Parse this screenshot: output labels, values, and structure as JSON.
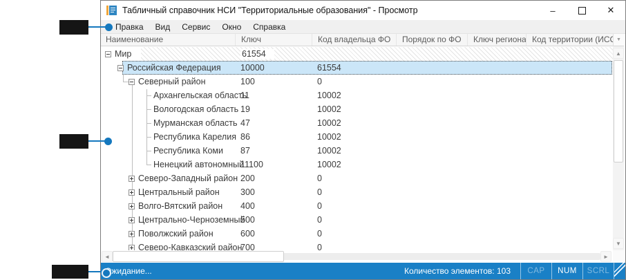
{
  "window": {
    "title": "Табличный справочник НСИ \"Территориальные образования\" - Просмотр",
    "controls": {
      "minimize": "–",
      "close": "✕"
    }
  },
  "menu": {
    "items": [
      "Правка",
      "Вид",
      "Сервис",
      "Окно",
      "Справка"
    ]
  },
  "grid": {
    "columns": [
      "Наименование",
      "Ключ",
      "Код владельца ФО",
      "Порядок по ФО",
      "Ключ региона",
      "Код территории (ИСС"
    ],
    "rows": [
      {
        "name": "Мир",
        "key": "61554",
        "owner": "",
        "level": 0,
        "expander": "minus",
        "hatched": true
      },
      {
        "name": "Российская Федерация",
        "key": "10000",
        "owner": "61554",
        "level": 1,
        "expander": "minus",
        "selected": true
      },
      {
        "name": "Северный район",
        "key": "100",
        "owner": "0",
        "level": 2,
        "expander": "minus"
      },
      {
        "name": "Архангельская область",
        "key": "11",
        "owner": "10002",
        "level": 3,
        "expander": "leaf"
      },
      {
        "name": "Вологодская область",
        "key": "19",
        "owner": "10002",
        "level": 3,
        "expander": "leaf"
      },
      {
        "name": "Мурманская область",
        "key": "47",
        "owner": "10002",
        "level": 3,
        "expander": "leaf"
      },
      {
        "name": "Республика Карелия",
        "key": "86",
        "owner": "10002",
        "level": 3,
        "expander": "leaf"
      },
      {
        "name": "Республика Коми",
        "key": "87",
        "owner": "10002",
        "level": 3,
        "expander": "leaf"
      },
      {
        "name": "Ненецкий автономный",
        "key": "11100",
        "owner": "10002",
        "level": 3,
        "expander": "leaf",
        "last": true
      },
      {
        "name": "Северо-Западный район",
        "key": "200",
        "owner": "0",
        "level": 2,
        "expander": "plus"
      },
      {
        "name": "Центральный район",
        "key": "300",
        "owner": "0",
        "level": 2,
        "expander": "plus"
      },
      {
        "name": "Волго-Вятский район",
        "key": "400",
        "owner": "0",
        "level": 2,
        "expander": "plus"
      },
      {
        "name": "Центрально-Черноземный",
        "key": "500",
        "owner": "0",
        "level": 2,
        "expander": "plus"
      },
      {
        "name": "Поволжский район",
        "key": "600",
        "owner": "0",
        "level": 2,
        "expander": "plus"
      },
      {
        "name": "Северо-Кавказский район",
        "key": "700",
        "owner": "0",
        "level": 2,
        "expander": "plus"
      }
    ]
  },
  "status": {
    "left": "Ожидание...",
    "count": "Количество элементов: 103",
    "toggles": [
      {
        "label": "CAP",
        "active": false
      },
      {
        "label": "NUM",
        "active": true
      },
      {
        "label": "SCRL",
        "active": false
      }
    ]
  },
  "callouts": [
    {
      "target": "menu-item-edit"
    },
    {
      "target": "grid-rows"
    },
    {
      "target": "status-waiting"
    }
  ],
  "colors": {
    "status_bar": "#1a80c6",
    "callout_accent": "#1478be",
    "selection_bg": "#cbe6f8"
  }
}
